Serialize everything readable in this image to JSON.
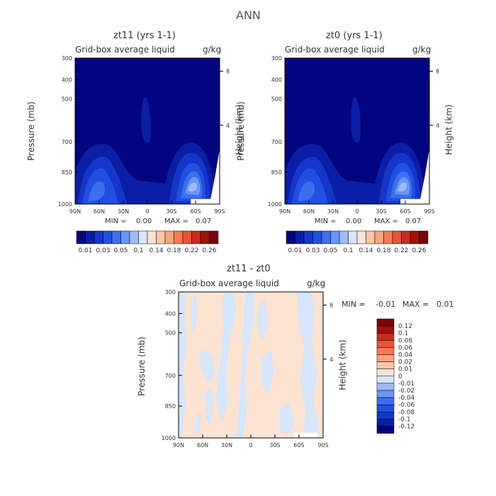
{
  "page_title": "ANN",
  "chart_data": [
    {
      "type": "heatmap",
      "title": "zt11 (yrs 1-1)",
      "subtitle": "Grid-box average liquid",
      "units": "g/kg",
      "xlabel": "",
      "ylabel": "Pressure (mb)",
      "ylabel_right": "Height (km)",
      "xticks": [
        "90N",
        "60N",
        "30N",
        "0",
        "30S",
        "60S",
        "90S"
      ],
      "yticks": [
        "300",
        "400",
        "500",
        "700",
        "850",
        "1000"
      ],
      "yticks_right": [
        "8",
        "4"
      ],
      "min_label": "MIN =",
      "min_value": "0.00",
      "max_label": "MAX =",
      "max_value": "0.07",
      "colorbar_labels": [
        "0.01",
        "0.03",
        "0.05",
        "0.1",
        "0.14",
        "0.18",
        "0.22",
        "0.26"
      ]
    },
    {
      "type": "heatmap",
      "title": "zt0 (yrs 1-1)",
      "subtitle": "Grid-box average liquid",
      "units": "g/kg",
      "xlabel": "",
      "ylabel": "Pressure (mb)",
      "ylabel_right": "Height (km)",
      "xticks": [
        "90N",
        "60N",
        "30N",
        "0",
        "30S",
        "60S",
        "90S"
      ],
      "yticks": [
        "300",
        "400",
        "500",
        "700",
        "850",
        "1000"
      ],
      "yticks_right": [
        "8",
        "4"
      ],
      "min_label": "MIN =",
      "min_value": "0.00",
      "max_label": "MAX =",
      "max_value": "0.07",
      "colorbar_labels": [
        "0.01",
        "0.03",
        "0.05",
        "0.1",
        "0.14",
        "0.18",
        "0.22",
        "0.26"
      ]
    },
    {
      "type": "heatmap",
      "title": "zt11 - zt0",
      "subtitle": "Grid-box average liquid",
      "units": "g/kg",
      "xlabel": "",
      "ylabel": "Pressure (mb)",
      "ylabel_right": "Height (km)",
      "xticks": [
        "90N",
        "60N",
        "30N",
        "0",
        "30S",
        "60S",
        "90S"
      ],
      "yticks": [
        "300",
        "400",
        "500",
        "700",
        "850",
        "1000"
      ],
      "yticks_right": [
        "8",
        "4"
      ],
      "min_label": "MIN =",
      "min_value": "-0.01",
      "max_label": "MAX =",
      "max_value": "0.01",
      "colorbar_labels": [
        "0.12",
        "0.1",
        "0.08",
        "0.06",
        "0.04",
        "0.02",
        "0.01",
        "0",
        "-0.01",
        "-0.02",
        "-0.04",
        "-0.06",
        "-0.08",
        "-0.1",
        "-0.12"
      ]
    }
  ],
  "colors": {
    "seq_scale": [
      "#03057f",
      "#0a1ea6",
      "#1536c8",
      "#2050e0",
      "#3c6ef0",
      "#6a95f5",
      "#9fbcf8",
      "#d6e6fb",
      "#fde3d2",
      "#fcc6a9",
      "#fba27f",
      "#f57c56",
      "#e85436",
      "#cc2a1e",
      "#a3110f",
      "#780607"
    ],
    "div_scale": [
      "#780607",
      "#a3110f",
      "#cc2a1e",
      "#e85436",
      "#f57c56",
      "#fba27f",
      "#fcc6a9",
      "#fde3d2",
      "#d6e6fb",
      "#9fbcf8",
      "#6a95f5",
      "#3c6ef0",
      "#2050e0",
      "#1536c8",
      "#0a1ea6",
      "#03057f"
    ],
    "diff_pos": "#fde3d2",
    "diff_neg": "#d6e6fb",
    "background": "#03057f"
  }
}
